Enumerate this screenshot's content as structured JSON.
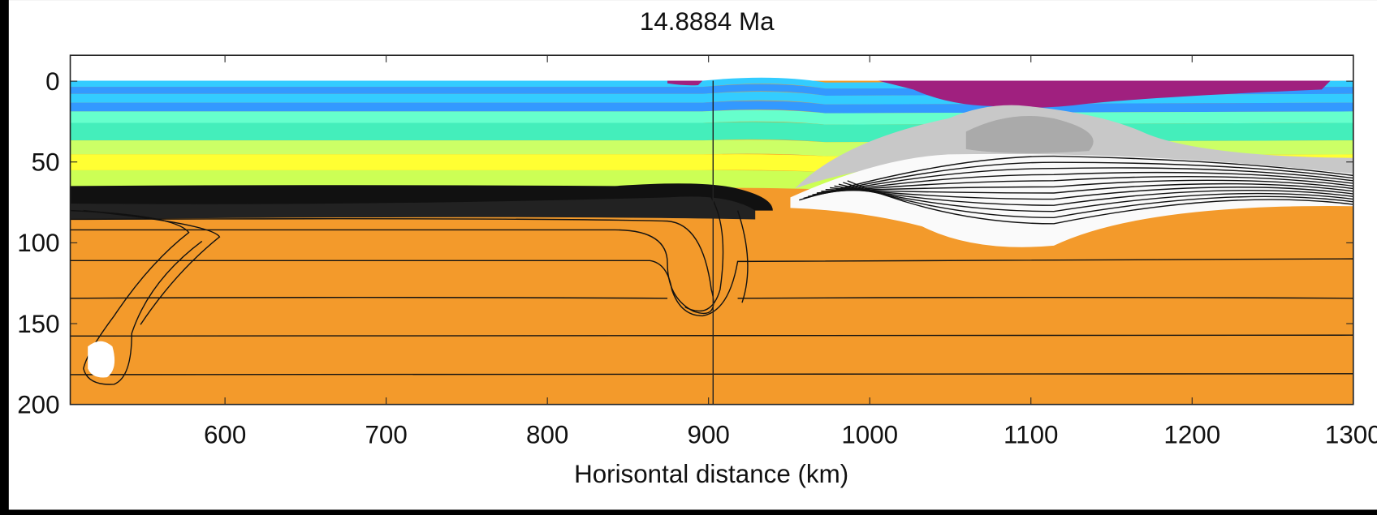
{
  "chart_data": {
    "type": "section",
    "title": "14.8884 Ma",
    "x_label": "Horisontal distance (km)",
    "xlim": [
      504,
      1300
    ],
    "xticks": [
      600,
      700,
      800,
      900,
      1000,
      1100,
      1200,
      1300
    ],
    "ylim": [
      -16,
      200
    ],
    "yticks": [
      0,
      50,
      100,
      150,
      200
    ],
    "y_inverted": true
  }
}
